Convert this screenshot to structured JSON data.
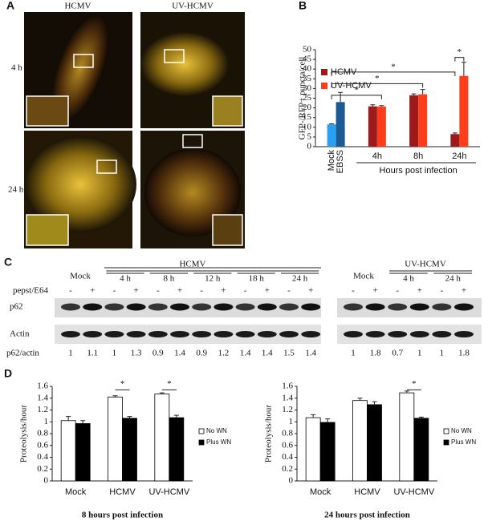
{
  "panel_a": {
    "label": "A",
    "columns": [
      "HCMV",
      "UV-HCMV"
    ],
    "rows": [
      "4 h",
      "24 h"
    ]
  },
  "panel_c": {
    "label": "C",
    "treatment": "pepst/E64",
    "signs": [
      "-",
      "+"
    ],
    "rows": [
      "p62",
      "Actin"
    ],
    "ratio_label": "p62/actin",
    "left": {
      "mock": "Mock",
      "title": "HCMV",
      "times": [
        "4 h",
        "8 h",
        "12 h",
        "18 h",
        "24 h"
      ],
      "ratios": [
        1,
        1.1,
        1,
        1.3,
        0.9,
        1.4,
        0.9,
        1.2,
        1.4,
        1.4,
        1.5,
        1.4
      ]
    },
    "right": {
      "mock": "Mock",
      "title": "UV-HCMV",
      "times": [
        "4 h",
        "24 h"
      ],
      "ratios": [
        1,
        1.8,
        0.7,
        1,
        1,
        1.8
      ]
    }
  },
  "chart_data": [
    {
      "type": "bar",
      "panel_label": "B",
      "y_label": "GFP-/RFP+ puncta/cell",
      "x_label": "Hours post infection",
      "categories": [
        null,
        "4h",
        "8h",
        "24h"
      ],
      "bar_labels": [
        "Mock",
        "EBSS"
      ],
      "series": [
        {
          "name": "HCMV",
          "color": "#9c1a1a",
          "colors": [
            "#2b9ff0",
            "#9c1a1a",
            "#9c1a1a",
            "#9c1a1a"
          ],
          "values": [
            11.5,
            20.8,
            26.5,
            6.5
          ],
          "errors": [
            0.3,
            0.8,
            0.7,
            0.6
          ]
        },
        {
          "name": "UV-HCMV",
          "color": "#ff3d1a",
          "colors": [
            "#1c5a94",
            "#ff3d1a",
            "#ff3d1a",
            "#ff3d1a"
          ],
          "values": [
            23,
            20.7,
            27,
            36.5
          ],
          "errors": [
            5,
            0.5,
            2.5,
            7
          ]
        }
      ],
      "ylim": [
        0,
        50
      ],
      "yticks": [
        0,
        5,
        10,
        15,
        20,
        25,
        30,
        35,
        40,
        45,
        50
      ],
      "legend": "upper left",
      "annotations": [
        "*",
        "*",
        "*",
        "*"
      ]
    },
    {
      "type": "bar",
      "y_label": "Proteolysis/hour",
      "x_label": "8 hours post infection",
      "categories": [
        "Mock",
        "HCMV",
        "UV-HCMV"
      ],
      "series": [
        {
          "name": "No WN",
          "color": "#ffffff",
          "values": [
            1.02,
            1.42,
            1.47
          ],
          "errors": [
            0.07,
            0.02,
            0.02
          ]
        },
        {
          "name": "Plus WN",
          "color": "#000000",
          "values": [
            0.97,
            1.06,
            1.07
          ],
          "errors": [
            0.05,
            0.03,
            0.04
          ]
        }
      ],
      "ylim": [
        0,
        1.6
      ],
      "yticks": [
        0,
        0.2,
        0.4,
        0.6,
        0.8,
        1,
        1.2,
        1.4,
        1.6
      ],
      "legend": "right",
      "annotations": [
        "*",
        "*"
      ]
    },
    {
      "type": "bar",
      "y_label": "Proteolysis/hour",
      "x_label": "24 hours post infection",
      "categories": [
        "Mock",
        "HCMV",
        "UV-HCMV"
      ],
      "series": [
        {
          "name": "No WN",
          "color": "#ffffff",
          "values": [
            1.07,
            1.36,
            1.49
          ],
          "errors": [
            0.05,
            0.04,
            0.03
          ]
        },
        {
          "name": "Plus WN",
          "color": "#000000",
          "values": [
            0.99,
            1.29,
            1.06
          ],
          "errors": [
            0.06,
            0.05,
            0.02
          ]
        }
      ],
      "ylim": [
        0,
        1.6
      ],
      "yticks": [
        0,
        0.2,
        0.4,
        0.6,
        0.8,
        1,
        1.2,
        1.4,
        1.6
      ],
      "legend": "right",
      "annotations": [
        "*"
      ]
    }
  ],
  "panel_d": {
    "label": "D"
  }
}
